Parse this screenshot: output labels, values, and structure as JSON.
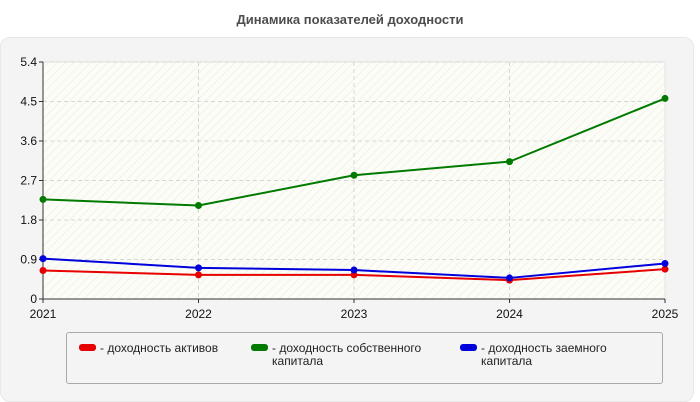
{
  "title": "Динамика показателей доходности",
  "chart_data": {
    "type": "line",
    "categories": [
      "2021",
      "2022",
      "2023",
      "2024",
      "2025"
    ],
    "ylim": [
      0,
      5.4
    ],
    "yticks": [
      "0",
      "0.9",
      "1.8",
      "2.7",
      "3.6",
      "4.5",
      "5.4"
    ],
    "grid": true,
    "legend_position": "bottom",
    "series": [
      {
        "name": "- доходность активов",
        "color": "#e60000",
        "values": [
          0.65,
          0.55,
          0.55,
          0.43,
          0.68
        ]
      },
      {
        "name": "- доходность собственного капитала",
        "color": "#007a00",
        "values": [
          2.27,
          2.13,
          2.82,
          3.13,
          4.57
        ]
      },
      {
        "name": "- доходность заемного капитала",
        "color": "#0000dd",
        "values": [
          0.92,
          0.71,
          0.66,
          0.48,
          0.81
        ]
      }
    ]
  },
  "legend": {
    "item1_line1": "- доходность активов",
    "item2_line1": "- доходность собственного",
    "item2_line2": "капитала",
    "item3_line1": "- доходность заемного",
    "item3_line2": "капитала"
  }
}
